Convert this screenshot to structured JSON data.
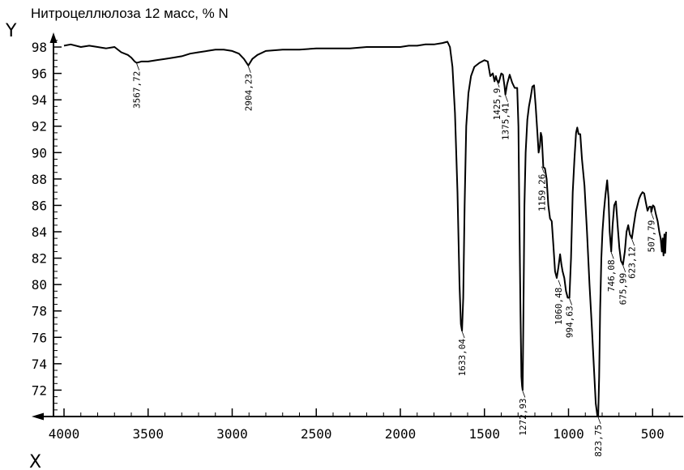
{
  "chart_data": {
    "type": "line",
    "title": "Нитроцеллюлоза 12 масс, % N",
    "xlabel": "X",
    "ylabel": "Y",
    "xlim": [
      4000,
      400
    ],
    "ylim": [
      70,
      98.8
    ],
    "grid": false,
    "x_ticks": [
      4000,
      3500,
      3000,
      2500,
      2000,
      1500,
      1000,
      500
    ],
    "y_ticks": [
      98,
      96,
      94,
      92,
      90,
      88,
      86,
      84,
      82,
      80,
      78,
      76,
      74,
      72
    ],
    "series": [
      {
        "values": [
          [
            4000,
            98.1
          ],
          [
            3960,
            98.2
          ],
          [
            3900,
            98.0
          ],
          [
            3850,
            98.1
          ],
          [
            3800,
            98.0
          ],
          [
            3750,
            97.9
          ],
          [
            3700,
            98.0
          ],
          [
            3660,
            97.6
          ],
          [
            3620,
            97.4
          ],
          [
            3600,
            97.2
          ],
          [
            3580,
            96.9
          ],
          [
            3567.72,
            96.8
          ],
          [
            3540,
            96.9
          ],
          [
            3500,
            96.9
          ],
          [
            3450,
            97.0
          ],
          [
            3400,
            97.1
          ],
          [
            3350,
            97.2
          ],
          [
            3300,
            97.3
          ],
          [
            3250,
            97.5
          ],
          [
            3200,
            97.6
          ],
          [
            3150,
            97.7
          ],
          [
            3100,
            97.8
          ],
          [
            3050,
            97.8
          ],
          [
            3000,
            97.7
          ],
          [
            2960,
            97.5
          ],
          [
            2930,
            97.1
          ],
          [
            2904.23,
            96.6
          ],
          [
            2880,
            97.1
          ],
          [
            2850,
            97.4
          ],
          [
            2800,
            97.7
          ],
          [
            2700,
            97.8
          ],
          [
            2600,
            97.8
          ],
          [
            2500,
            97.9
          ],
          [
            2400,
            97.9
          ],
          [
            2300,
            97.9
          ],
          [
            2200,
            98.0
          ],
          [
            2100,
            98.0
          ],
          [
            2000,
            98.0
          ],
          [
            1950,
            98.1
          ],
          [
            1900,
            98.1
          ],
          [
            1850,
            98.2
          ],
          [
            1800,
            98.2
          ],
          [
            1750,
            98.3
          ],
          [
            1720,
            98.4
          ],
          [
            1705,
            98.0
          ],
          [
            1690,
            96.5
          ],
          [
            1675,
            93.0
          ],
          [
            1660,
            87.0
          ],
          [
            1648,
            80.0
          ],
          [
            1640,
            77.0
          ],
          [
            1633.04,
            76.5
          ],
          [
            1626,
            79.0
          ],
          [
            1618,
            86.0
          ],
          [
            1608,
            92.0
          ],
          [
            1595,
            94.5
          ],
          [
            1580,
            95.8
          ],
          [
            1560,
            96.5
          ],
          [
            1530,
            96.8
          ],
          [
            1500,
            97.0
          ],
          [
            1480,
            96.9
          ],
          [
            1465,
            95.8
          ],
          [
            1450,
            96.0
          ],
          [
            1440,
            95.4
          ],
          [
            1432,
            95.8
          ],
          [
            1425.9,
            95.5
          ],
          [
            1415,
            95.3
          ],
          [
            1400,
            96.0
          ],
          [
            1390,
            95.9
          ],
          [
            1380,
            95.0
          ],
          [
            1375.41,
            94.4
          ],
          [
            1365,
            95.2
          ],
          [
            1350,
            95.9
          ],
          [
            1335,
            95.3
          ],
          [
            1320,
            94.9
          ],
          [
            1305,
            94.9
          ],
          [
            1298,
            92.0
          ],
          [
            1292,
            85.0
          ],
          [
            1286,
            78.0
          ],
          [
            1280,
            73.0
          ],
          [
            1276,
            72.3
          ],
          [
            1272.93,
            72.0
          ],
          [
            1268,
            78.0
          ],
          [
            1262,
            86.0
          ],
          [
            1255,
            90.0
          ],
          [
            1245,
            92.5
          ],
          [
            1235,
            93.5
          ],
          [
            1225,
            94.2
          ],
          [
            1215,
            95.0
          ],
          [
            1205,
            95.1
          ],
          [
            1195,
            93.5
          ],
          [
            1185,
            91.5
          ],
          [
            1178,
            90.0
          ],
          [
            1170,
            90.5
          ],
          [
            1165,
            91.5
          ],
          [
            1159.26,
            91.2
          ],
          [
            1150,
            88.9
          ],
          [
            1140,
            88.8
          ],
          [
            1130,
            88.0
          ],
          [
            1120,
            86.0
          ],
          [
            1110,
            85.0
          ],
          [
            1100,
            84.8
          ],
          [
            1090,
            83.0
          ],
          [
            1080,
            81.0
          ],
          [
            1070,
            80.5
          ],
          [
            1060.48,
            81.3
          ],
          [
            1050,
            82.3
          ],
          [
            1042,
            81.5
          ],
          [
            1035,
            81.0
          ],
          [
            1025,
            80.5
          ],
          [
            1015,
            79.5
          ],
          [
            1005,
            79.0
          ],
          [
            994.63,
            79.0
          ],
          [
            985,
            82.0
          ],
          [
            975,
            87.0
          ],
          [
            965,
            89.5
          ],
          [
            955,
            91.5
          ],
          [
            948,
            91.9
          ],
          [
            940,
            91.4
          ],
          [
            930,
            91.4
          ],
          [
            920,
            89.5
          ],
          [
            905,
            87.5
          ],
          [
            890,
            84.0
          ],
          [
            875,
            80.0
          ],
          [
            862,
            77.0
          ],
          [
            850,
            74.0
          ],
          [
            838,
            71.0
          ],
          [
            828,
            70.0
          ],
          [
            823.75,
            70.0
          ],
          [
            818,
            73.0
          ],
          [
            812,
            78.0
          ],
          [
            805,
            82.0
          ],
          [
            798,
            84.0
          ],
          [
            790,
            85.5
          ],
          [
            780,
            86.8
          ],
          [
            770,
            87.9
          ],
          [
            762,
            86.5
          ],
          [
            755,
            84.0
          ],
          [
            746.08,
            82.5
          ],
          [
            738,
            84.5
          ],
          [
            728,
            86.0
          ],
          [
            718,
            86.3
          ],
          [
            708,
            84.5
          ],
          [
            698,
            82.8
          ],
          [
            688,
            81.8
          ],
          [
            680,
            81.6
          ],
          [
            675.99,
            81.5
          ],
          [
            665,
            82.5
          ],
          [
            655,
            84.0
          ],
          [
            645,
            84.5
          ],
          [
            635,
            83.8
          ],
          [
            623.12,
            83.5
          ],
          [
            612,
            84.5
          ],
          [
            600,
            85.5
          ],
          [
            590,
            86.0
          ],
          [
            580,
            86.5
          ],
          [
            570,
            86.8
          ],
          [
            560,
            87.0
          ],
          [
            550,
            86.9
          ],
          [
            540,
            86.2
          ],
          [
            530,
            85.6
          ],
          [
            520,
            85.9
          ],
          [
            510,
            85.9
          ],
          [
            507.79,
            85.5
          ],
          [
            498,
            86.0
          ],
          [
            490,
            85.9
          ],
          [
            480,
            85.3
          ],
          [
            470,
            84.8
          ],
          [
            460,
            84.0
          ],
          [
            452,
            83.5
          ],
          [
            445,
            82.5
          ],
          [
            440,
            83.5
          ],
          [
            435,
            82.2
          ],
          [
            430,
            83.8
          ],
          [
            425,
            82.4
          ],
          [
            420,
            84.0
          ]
        ]
      }
    ],
    "annotations": [
      {
        "label": "3567,72",
        "x": 3567.72,
        "y": 96.8
      },
      {
        "label": "2904,23",
        "x": 2904.23,
        "y": 96.6
      },
      {
        "label": "1425,9",
        "x": 1425.9,
        "y": 95.5
      },
      {
        "label": "1375,41",
        "x": 1375.41,
        "y": 94.4
      },
      {
        "label": "1159,26",
        "x": 1159.26,
        "y": 89.0
      },
      {
        "label": "1633,04",
        "x": 1633.04,
        "y": 76.5
      },
      {
        "label": "1272,93",
        "x": 1272.93,
        "y": 72.0
      },
      {
        "label": "1060,48",
        "x": 1060.48,
        "y": 80.4
      },
      {
        "label": "994,63",
        "x": 994.63,
        "y": 79.0
      },
      {
        "label": "823,75",
        "x": 823.75,
        "y": 70.0
      },
      {
        "label": "746,08",
        "x": 746.08,
        "y": 82.5
      },
      {
        "label": "675,99",
        "x": 675.99,
        "y": 81.5
      },
      {
        "label": "623,12",
        "x": 623.12,
        "y": 83.5
      },
      {
        "label": "507,79",
        "x": 507.79,
        "y": 85.5
      }
    ],
    "colors": {
      "line": "#000000",
      "background": "#ffffff"
    }
  }
}
